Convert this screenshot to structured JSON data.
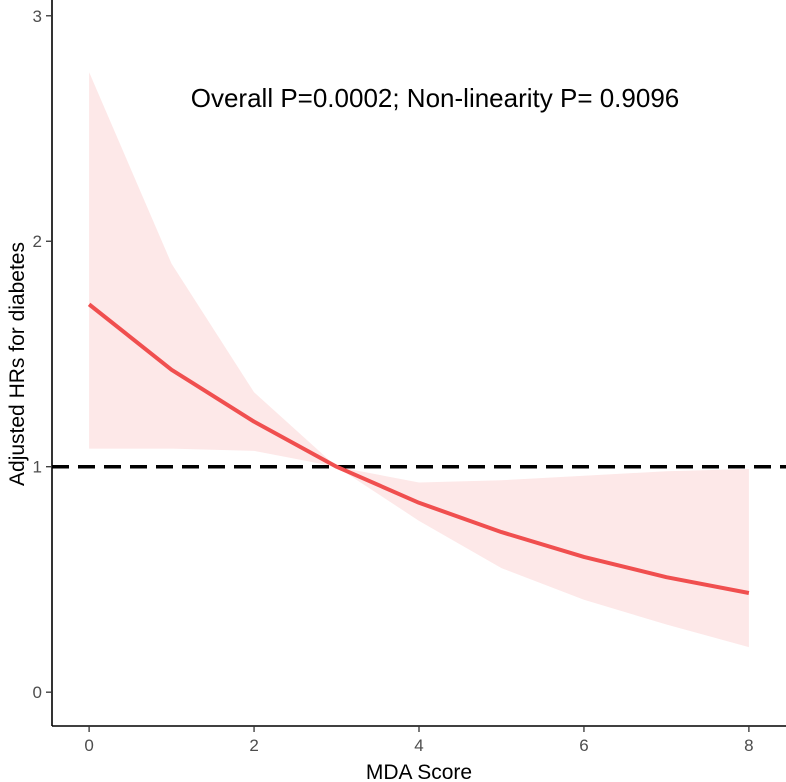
{
  "chart_data": {
    "type": "line",
    "title": "",
    "xlabel": "MDA Score",
    "ylabel": "Adjusted HRs for diabetes",
    "annotation": "Overall P=0.0002; Non-linearity P= 0.9096",
    "xlim": [
      -0.45,
      8.45
    ],
    "ylim": [
      -0.15,
      3.07
    ],
    "x_ticks": [
      0,
      2,
      4,
      6,
      8
    ],
    "y_ticks": [
      0,
      1,
      2,
      3
    ],
    "x_tick_labels": [
      "0",
      "2",
      "4",
      "6",
      "8"
    ],
    "y_tick_labels": [
      "0",
      "1",
      "2",
      "3"
    ],
    "grid": false,
    "reference_line": {
      "y": 1,
      "style": "dashed",
      "color": "#000000"
    },
    "series": [
      {
        "name": "HR",
        "color": "#f04f4f",
        "x": [
          0,
          1,
          2,
          3,
          4,
          5,
          6,
          7,
          8
        ],
        "y": [
          1.72,
          1.43,
          1.2,
          1.0,
          0.84,
          0.71,
          0.6,
          0.51,
          0.44
        ],
        "ci_lower": [
          1.08,
          1.08,
          1.07,
          1.0,
          0.76,
          0.55,
          0.41,
          0.3,
          0.2
        ],
        "ci_upper": [
          2.75,
          1.9,
          1.33,
          1.0,
          0.93,
          0.94,
          0.96,
          0.98,
          0.99
        ],
        "ci_color": "#fde8e8"
      }
    ]
  }
}
